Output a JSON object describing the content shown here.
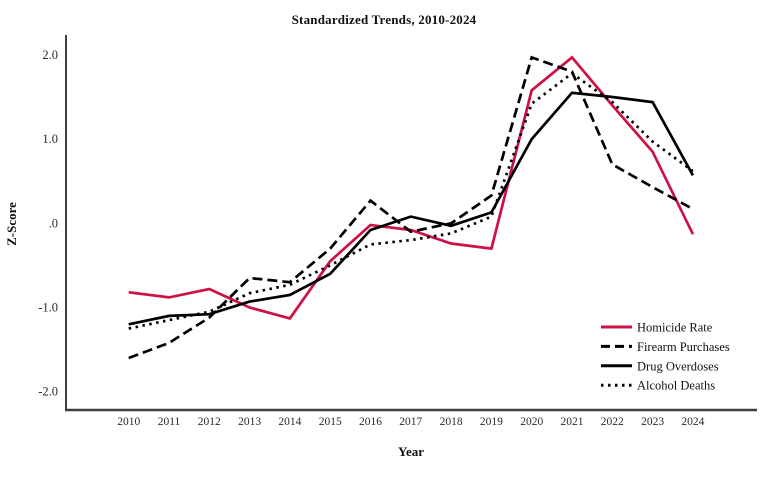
{
  "figure": {
    "title": "Standardized Trends, 2010-2024",
    "xlabel": "Year",
    "ylabel": "Z-Score"
  },
  "chart_data": {
    "type": "line",
    "title": "Standardized Trends, 2010-2024",
    "xlabel": "Year",
    "ylabel": "Z-Score",
    "x": [
      2010,
      2011,
      2012,
      2013,
      2014,
      2015,
      2016,
      2017,
      2018,
      2019,
      2020,
      2021,
      2022,
      2023,
      2024
    ],
    "x_tick_labels": [
      "2010",
      "2011",
      "2012",
      "2013",
      "2014",
      "2015",
      "2016",
      "2017",
      "2018",
      "2019",
      "2020",
      "2021",
      "2022",
      "2023",
      "2024"
    ],
    "y_tick_values": [
      2.0,
      1.0,
      0.0,
      -1.0,
      -2.0
    ],
    "y_tick_labels": [
      "2.0",
      "1.0",
      ".0",
      "-1.0",
      "-2.0"
    ],
    "ylim": [
      -2.2,
      2.2
    ],
    "grid": false,
    "legend_position": "inside-lower-right",
    "series": [
      {
        "name": "Homicide Rate",
        "color": "#cc1144",
        "line_style": "solid",
        "values": [
          -0.82,
          -0.88,
          -0.78,
          -1.0,
          -1.13,
          -0.45,
          -0.02,
          -0.08,
          -0.24,
          -0.3,
          1.58,
          1.97,
          1.4,
          0.85,
          -0.13
        ]
      },
      {
        "name": "Firearm Purchases",
        "color": "#000000",
        "line_style": "dashed",
        "values": [
          -1.6,
          -1.42,
          -1.12,
          -0.65,
          -0.7,
          -0.3,
          0.27,
          -0.1,
          0.0,
          0.33,
          1.97,
          1.8,
          0.7,
          0.43,
          0.17
        ]
      },
      {
        "name": "Drug Overdoses",
        "color": "#000000",
        "line_style": "solid",
        "values": [
          -1.2,
          -1.1,
          -1.08,
          -0.93,
          -0.85,
          -0.6,
          -0.08,
          0.08,
          -0.03,
          0.13,
          1.0,
          1.55,
          1.5,
          1.44,
          0.57
        ]
      },
      {
        "name": "Alcohol Deaths",
        "color": "#000000",
        "line_style": "dotted",
        "values": [
          -1.25,
          -1.15,
          -1.05,
          -0.83,
          -0.73,
          -0.5,
          -0.25,
          -0.2,
          -0.12,
          0.08,
          1.42,
          1.78,
          1.44,
          0.97,
          0.62
        ]
      }
    ]
  },
  "colors": {
    "background": "#ffffff",
    "axis": "#3f3f3f",
    "tick_label": "#2b2b2b",
    "accent_red": "#cc1144"
  }
}
